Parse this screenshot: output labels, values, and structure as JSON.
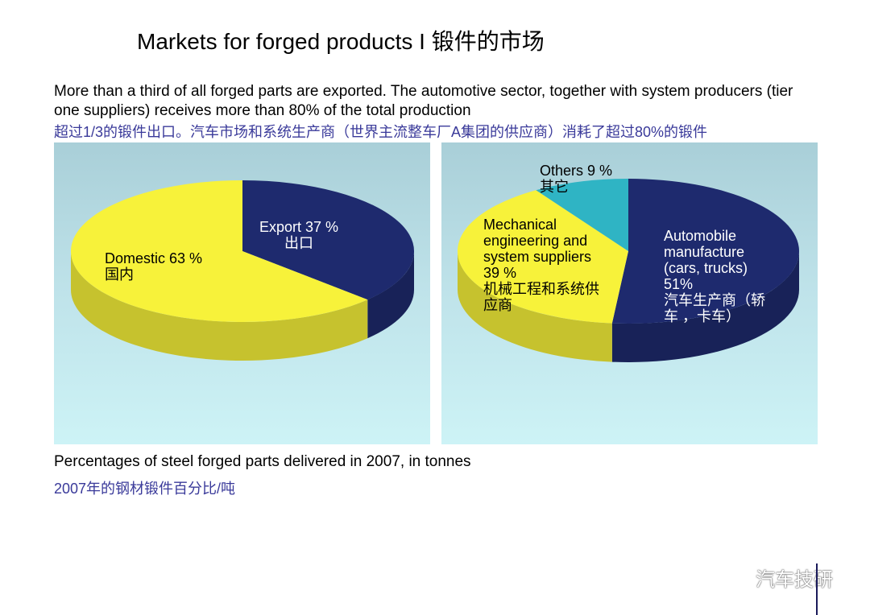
{
  "title": "Markets for forged products I 锻件的市场",
  "intro": {
    "en": "More than a third of all forged parts are exported. The automotive sector, together with system producers (tier one suppliers) receives more than 80% of the total production",
    "zh": "超过1/3的锻件出口。汽车市场和系统生产商（世界主流整车厂A集团的供应商）消耗了超过80%的锻件"
  },
  "caption": {
    "en": "Percentages of steel forged parts delivered in 2007, in tonnes",
    "zh": "2007年的钢材锻件百分比/吨"
  },
  "watermark": "汽车技研",
  "colors": {
    "navy": "#1e2a6e",
    "yellow": "#f7f23a",
    "teal": "#2fb4c4"
  },
  "chart_data": [
    {
      "type": "pie",
      "title": "",
      "slices": [
        {
          "label_lines": [
            "Export 37 %",
            "出口"
          ],
          "value": 37,
          "color": "#1e2a6e"
        },
        {
          "label_lines": [
            "Domestic 63 %",
            "国内"
          ],
          "value": 63,
          "color": "#f7f23a"
        }
      ]
    },
    {
      "type": "pie",
      "title": "",
      "slices": [
        {
          "label_lines": [
            "Automobile",
            "manufacture",
            "(cars, trucks)",
            "51%",
            "汽车生产商（轿",
            "车 ，卡车）"
          ],
          "value": 51,
          "color": "#1e2a6e"
        },
        {
          "label_lines": [
            "Mechanical",
            "engineering and",
            "system suppliers",
            "39 %",
            "机械工程和系统供",
            "应商"
          ],
          "value": 39,
          "color": "#f7f23a"
        },
        {
          "label_lines": [
            "Others 9 %",
            "其它"
          ],
          "value": 9,
          "color": "#2fb4c4"
        }
      ]
    }
  ]
}
